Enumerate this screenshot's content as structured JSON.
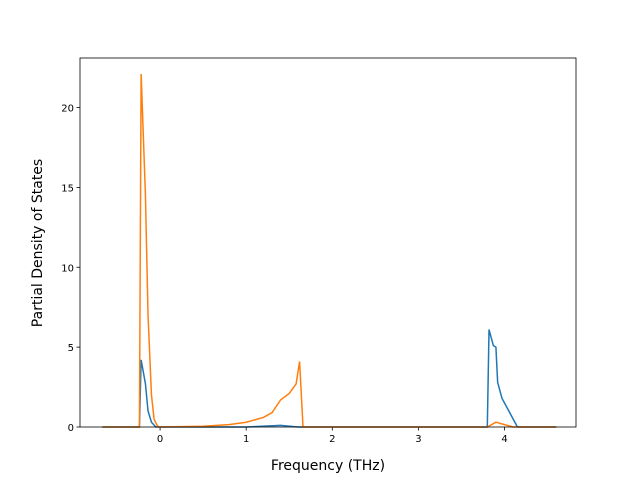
{
  "chart_data": {
    "type": "line",
    "xlabel": "Frequency (THz)",
    "ylabel": "Partial Density of States",
    "xlim": [
      -0.93,
      4.83
    ],
    "ylim": [
      0,
      23.1
    ],
    "xticks": [
      0,
      1,
      2,
      3,
      4
    ],
    "yticks": [
      0,
      5,
      10,
      15,
      20
    ],
    "series": [
      {
        "color": "#1f77b4",
        "x": [
          -0.67,
          -0.24,
          -0.22,
          -0.17,
          -0.14,
          -0.1,
          -0.05,
          1.0,
          1.4,
          1.6,
          3.8,
          3.82,
          3.87,
          3.9,
          3.92,
          3.97,
          4.05,
          4.12,
          4.15,
          4.6
        ],
        "values": [
          0,
          0,
          4.2,
          2.7,
          1.0,
          0.3,
          0,
          0,
          0.1,
          0,
          0,
          6.1,
          5.1,
          5.0,
          2.8,
          1.8,
          1.0,
          0.3,
          0,
          0
        ]
      },
      {
        "color": "#ff7f0e",
        "x": [
          -0.67,
          -0.24,
          -0.22,
          -0.17,
          -0.14,
          -0.1,
          -0.07,
          -0.03,
          0,
          0.5,
          0.8,
          1.0,
          1.2,
          1.3,
          1.4,
          1.5,
          1.58,
          1.62,
          1.66,
          3.8,
          3.9,
          4.0,
          4.1,
          4.6
        ],
        "values": [
          0,
          0,
          22.1,
          14.5,
          7.0,
          2.0,
          0.5,
          0.05,
          0,
          0.05,
          0.15,
          0.3,
          0.6,
          0.9,
          1.7,
          2.1,
          2.7,
          4.1,
          0,
          0,
          0.3,
          0.15,
          0,
          0
        ]
      }
    ]
  }
}
